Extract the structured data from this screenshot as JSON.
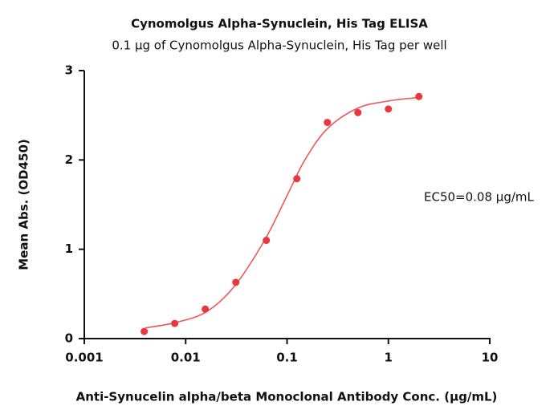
{
  "chart_data": {
    "type": "scatter",
    "title": "Cynomolgus Alpha-Synuclein, His Tag ELISA",
    "subtitle": "0.1 µg of Cynomolgus Alpha-Synuclein, His Tag per well",
    "x_label": "Anti-Synucelin alpha/beta Monoclonal Antibody Conc. (µg/mL)",
    "y_label": "Mean Abs. (OD450)",
    "annotation": "EC50=0.08 µg/mL",
    "x_scale": "log",
    "xlim": [
      0.001,
      10
    ],
    "xticks": [
      0.001,
      0.01,
      0.1,
      1,
      10
    ],
    "ylim": [
      0,
      3
    ],
    "yticks": [
      0,
      1,
      2,
      3
    ],
    "series": [
      {
        "type": "scatter",
        "color": "#e8383d",
        "x": [
          0.0039,
          0.0078,
          0.0156,
          0.03125,
          0.0625,
          0.125,
          0.25,
          0.5,
          1,
          2
        ],
        "values": [
          0.08,
          0.17,
          0.33,
          0.63,
          1.1,
          1.79,
          2.42,
          2.53,
          2.57,
          2.71
        ]
      },
      {
        "type": "line",
        "color": "#f0585a",
        "x": [
          0.004,
          0.008,
          0.016,
          0.03,
          0.06,
          0.1,
          0.15,
          0.25,
          0.5,
          1,
          2
        ],
        "values": [
          0.12,
          0.18,
          0.3,
          0.58,
          1.1,
          1.6,
          2.0,
          2.35,
          2.58,
          2.66,
          2.7
        ]
      }
    ]
  }
}
